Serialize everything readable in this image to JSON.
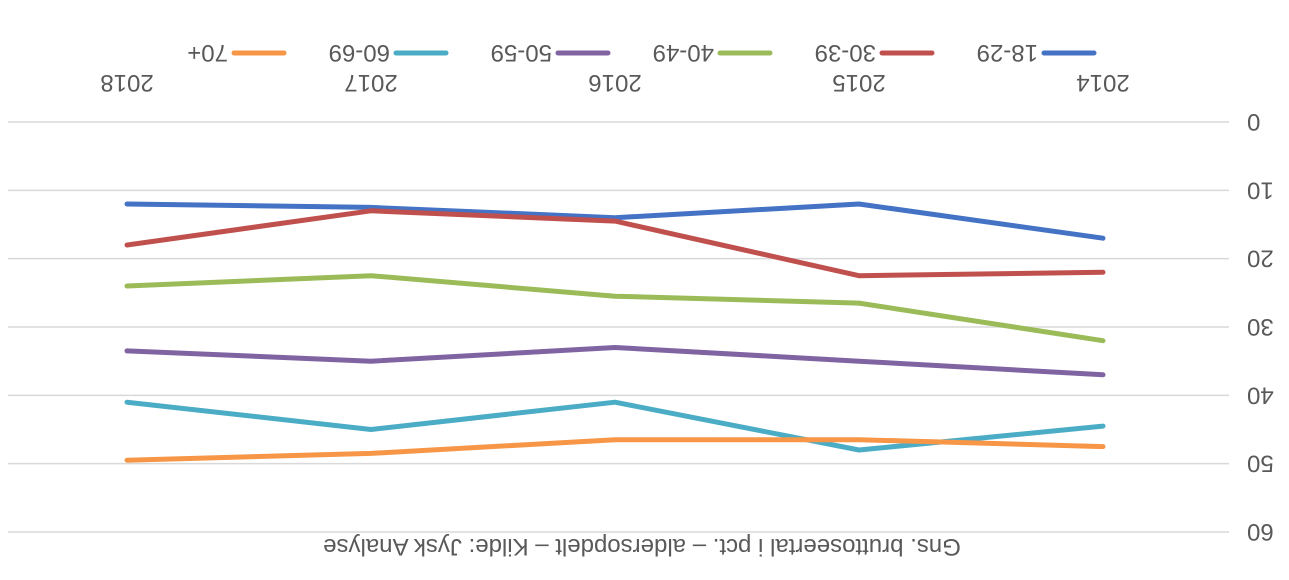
{
  "chart_data": {
    "type": "line",
    "title": "Gns. bruttoseertal i pct. – aldersopdelt – Kilde: Jysk Analyse",
    "orientation": "rotated-180",
    "categories": [
      "2014",
      "2015",
      "2016",
      "2017",
      "2018"
    ],
    "ylim": [
      0,
      60
    ],
    "yticks": [
      "0",
      "10",
      "20",
      "30",
      "40",
      "50",
      "60"
    ],
    "grid": true,
    "legend_position": "bottom",
    "series": [
      {
        "name": "18-29",
        "color": "#4472C4",
        "values": [
          17,
          12,
          14,
          12.5,
          12
        ]
      },
      {
        "name": "30-39",
        "color": "#C0504D",
        "values": [
          22,
          22.5,
          14.5,
          13,
          18
        ]
      },
      {
        "name": "40-49",
        "color": "#9BBB59",
        "values": [
          32,
          26.5,
          25.5,
          22.5,
          24
        ]
      },
      {
        "name": "50-59",
        "color": "#8064A2",
        "values": [
          37,
          35,
          33,
          35,
          33.5
        ]
      },
      {
        "name": "60-69",
        "color": "#4BACC6",
        "values": [
          44.5,
          48,
          41,
          45,
          41
        ]
      },
      {
        "name": "70+",
        "color": "#F79646",
        "values": [
          47.5,
          46.5,
          46.5,
          48.5,
          49.5
        ]
      }
    ]
  }
}
